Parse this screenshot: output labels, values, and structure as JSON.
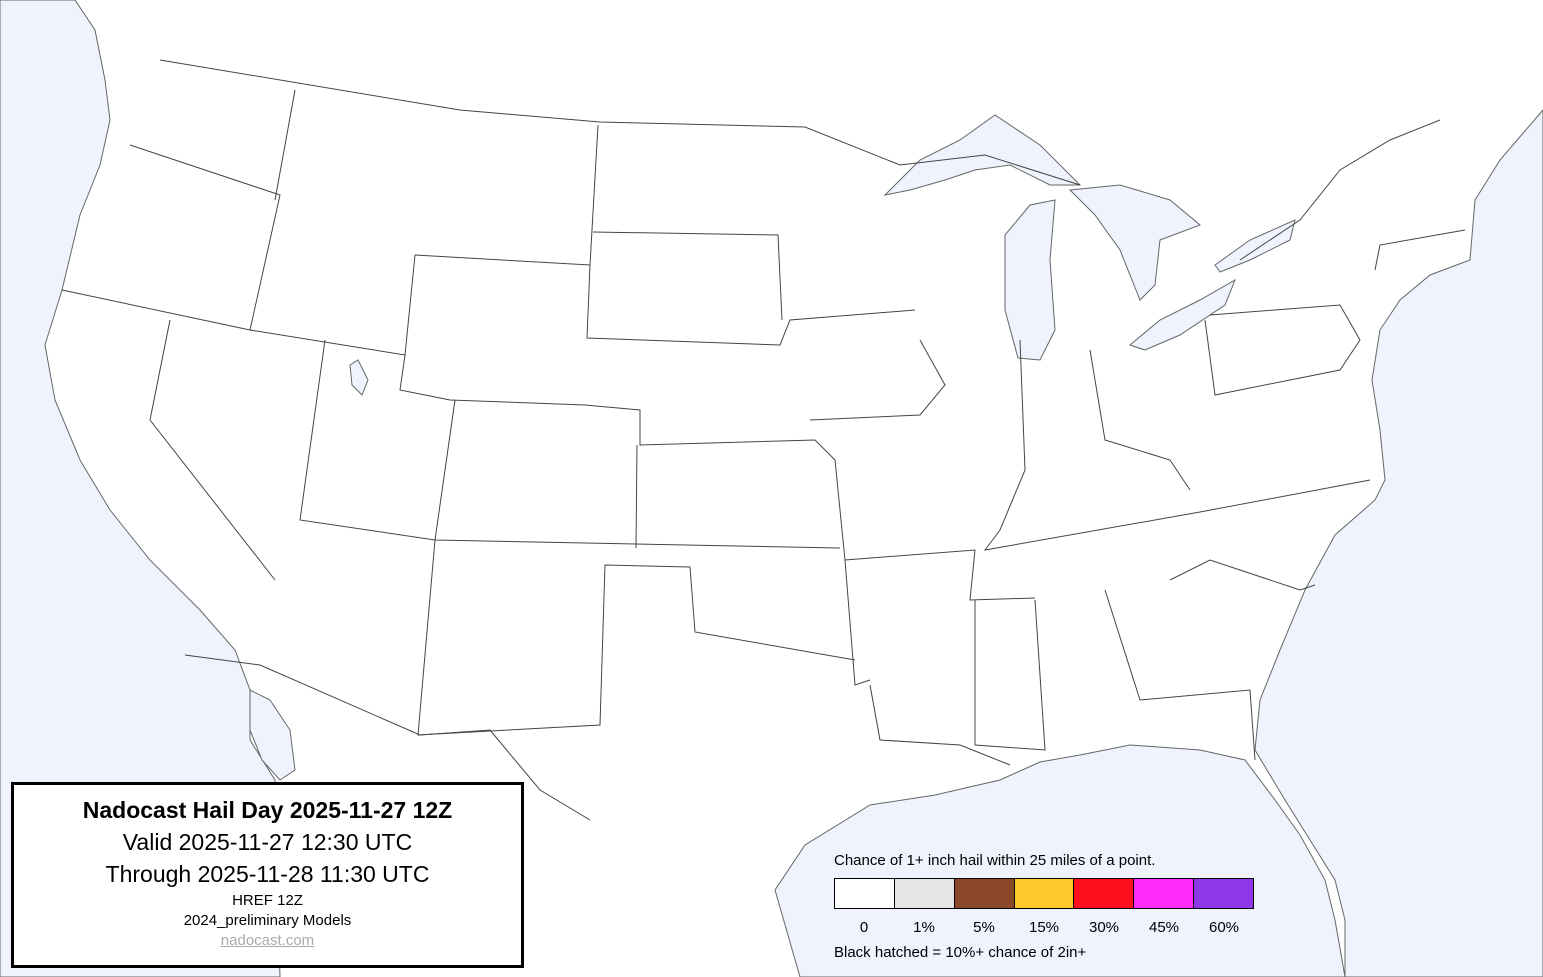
{
  "title_box": {
    "title": "Nadocast Hail Day 2025-11-27 12Z",
    "valid": "Valid 2025-11-27 12:30 UTC",
    "through": "Through 2025-11-28 11:30 UTC",
    "model": "HREF 12Z",
    "models_version": "2024_preliminary Models",
    "link": "nadocast.com"
  },
  "legend": {
    "title": "Chance of 1+ inch hail within 25 miles of a point.",
    "bins": [
      {
        "label": "0",
        "color": "#ffffff"
      },
      {
        "label": "1%",
        "color": "#e5e5e5"
      },
      {
        "label": "5%",
        "color": "#8b4729"
      },
      {
        "label": "15%",
        "color": "#fec72e"
      },
      {
        "label": "30%",
        "color": "#fe0f1d"
      },
      {
        "label": "45%",
        "color": "#fd2bfc"
      },
      {
        "label": "60%",
        "color": "#8d37e8"
      }
    ],
    "hatch_note": "Black hatched = 10%+ chance of 2in+"
  },
  "map": {
    "water_color": "#eef3fd",
    "land_color": "#ffffff",
    "border_color": "#555555",
    "forecast_areas": []
  }
}
